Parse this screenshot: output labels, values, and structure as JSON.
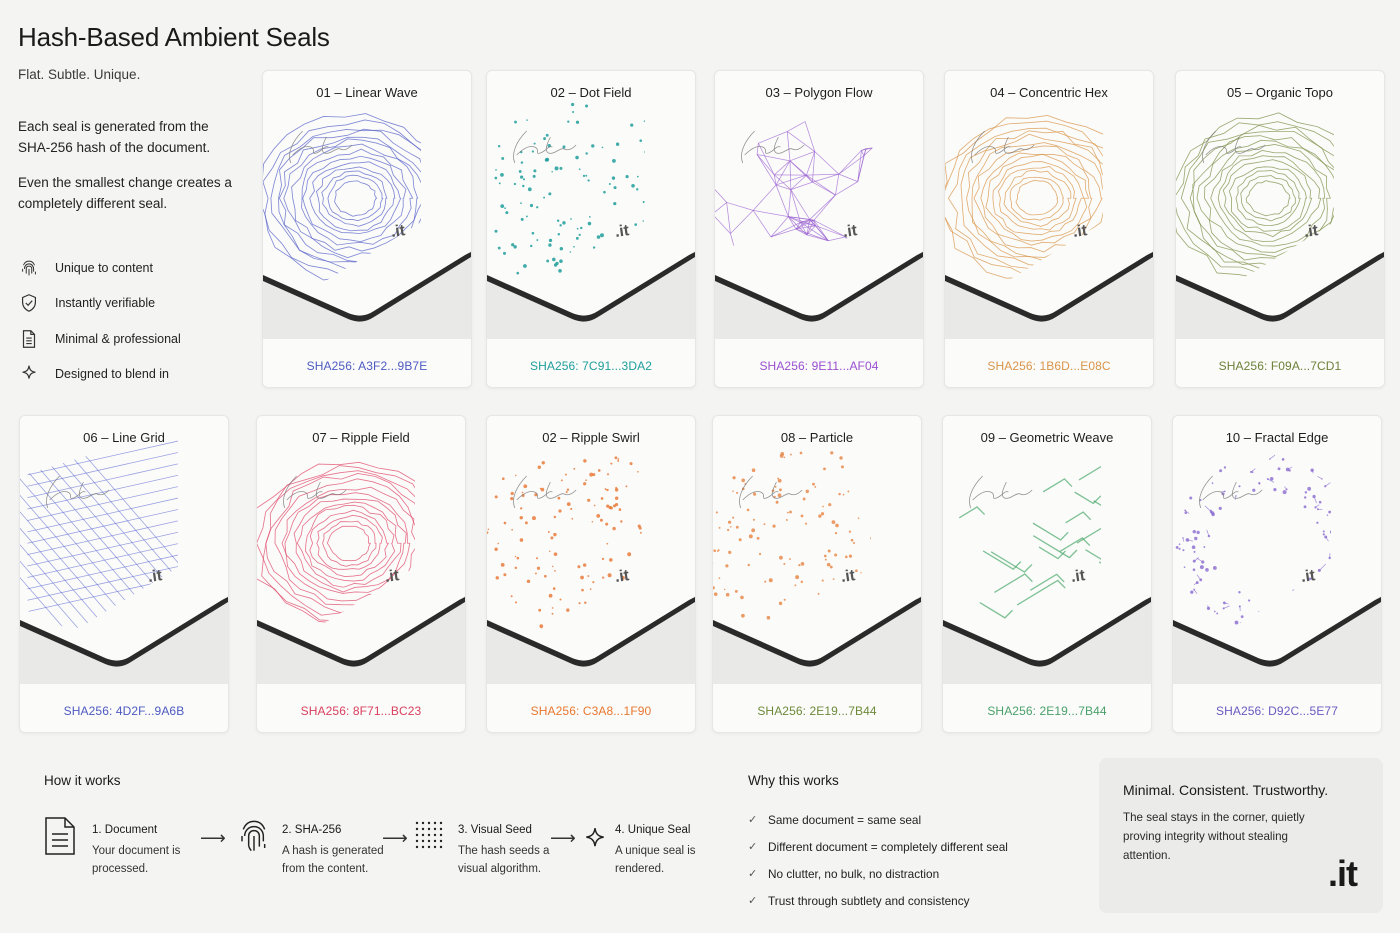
{
  "header": {
    "title": "Hash-Based Ambient Seals",
    "subtitle": "Flat. Subtle. Unique.",
    "description_1": "Each seal is generated from the SHA-256 hash of the document.",
    "description_2": "Even the smallest change creates a completely different seal."
  },
  "features": [
    {
      "icon": "fingerprint-icon",
      "label": "Unique to content"
    },
    {
      "icon": "shield-check-icon",
      "label": "Instantly verifiable"
    },
    {
      "icon": "document-icon",
      "label": "Minimal & professional"
    },
    {
      "icon": "sparkle-icon",
      "label": "Designed to blend in"
    }
  ],
  "seal_logo": ".it",
  "cards": [
    {
      "label": "01 – Linear Wave",
      "hash": "SHA256: A3F2...9B7E",
      "color": "#5a64c8",
      "pattern": "rings"
    },
    {
      "label": "02 – Dot Field",
      "hash": "SHA256: 7C91...3DA2",
      "color": "#1f9e9a",
      "pattern": "dots"
    },
    {
      "label": "03 – Polygon Flow",
      "hash": "SHA256: 9E11...AF04",
      "color": "#9a5fd0",
      "pattern": "polygon"
    },
    {
      "label": "04 – Concentric Hex",
      "hash": "SHA256: 1B6D...E08C",
      "color": "#d9954a",
      "pattern": "rings"
    },
    {
      "label": "05 – Organic Topo",
      "hash": "SHA256: F09A...7CD1",
      "color": "#7d9048",
      "pattern": "rings"
    },
    {
      "label": "06 – Line Grid",
      "hash": "SHA256: 4D2F...9A6B",
      "color": "#5865d0",
      "pattern": "grid"
    },
    {
      "label": "07 – Ripple Field",
      "hash": "SHA256: 8F71...BC23",
      "color": "#e04a6a",
      "pattern": "rings"
    },
    {
      "label": "02 – Ripple Swirl",
      "hash": "SHA256: C3A8...1F90",
      "color": "#e87a3a",
      "pattern": "dots"
    },
    {
      "label": "08 – Particle",
      "hash": "SHA256: 2E19...7B44",
      "color": "#e88a4a",
      "pattern": "dots"
    },
    {
      "label": "09 – Geometric Weave",
      "hash": "SHA256: 2E19...7B44",
      "color": "#4aa86a",
      "pattern": "weave"
    },
    {
      "label": "10 – Fractal Edge",
      "hash": "SHA256: D92C...5E77",
      "color": "#8a6ad0",
      "pattern": "fractal"
    }
  ],
  "card_hash_colors": {
    "row1": [
      "#4d5ac0",
      "#1f9e9a",
      "#9a4fd0",
      "#d9954a",
      "#6d8038"
    ],
    "row2": [
      "#4d5ac0",
      "#d9405f",
      "#e8782f",
      "#6d8a3a",
      "#4aa06a",
      "#6a5ac0"
    ]
  },
  "how_it_works": {
    "title": "How it works",
    "steps": [
      {
        "icon": "document-icon",
        "title": "1. Document",
        "body": "Your document is processed."
      },
      {
        "icon": "fingerprint-icon",
        "title": "2. SHA-256",
        "body": "A hash is generated from the content."
      },
      {
        "icon": "dot-grid-icon",
        "title": "3. Visual Seed",
        "body": "The hash seeds a visual algorithm."
      },
      {
        "icon": "sparkle-icon",
        "title": "4. Unique Seal",
        "body": "A unique seal is rendered."
      }
    ]
  },
  "why": {
    "title": "Why this works",
    "items": [
      "Same document = same seal",
      "Different document = completely different seal",
      "No clutter, no bulk, no distraction",
      "Trust through subtlety and consistency"
    ]
  },
  "promo": {
    "title": "Minimal. Consistent. Trustworthy.",
    "body": "The seal stays in the corner, quietly proving integrity without stealing attention.",
    "logo": ".it"
  }
}
